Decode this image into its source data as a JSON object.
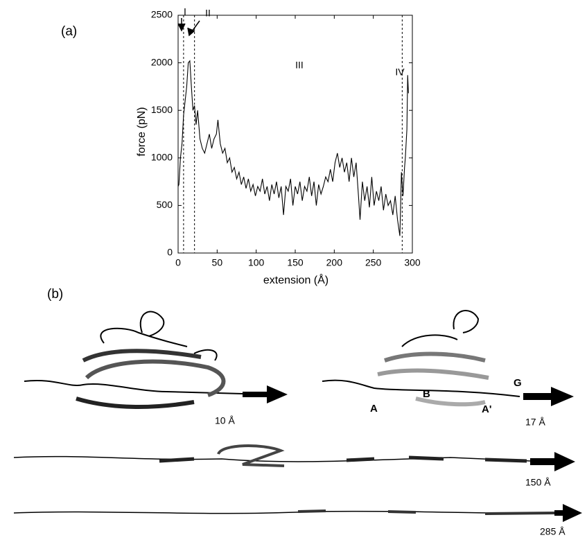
{
  "panel_labels": [
    "(a)",
    "(b)"
  ],
  "chart_data": {
    "type": "line",
    "xlabel": "extension (Å)",
    "ylabel": "force (pN)",
    "xlim": [
      0,
      300
    ],
    "ylim": [
      0,
      2500
    ],
    "xticks": [
      0,
      50,
      100,
      150,
      200,
      250,
      300
    ],
    "yticks": [
      0,
      500,
      1000,
      1500,
      2000,
      2500
    ],
    "region_lines": [
      7,
      21,
      287
    ],
    "annotations": [
      "I",
      "II",
      "III",
      "IV"
    ],
    "color": "#000000",
    "x": [
      0,
      1,
      3,
      5,
      7,
      9,
      11,
      13,
      15,
      17,
      19,
      21,
      23,
      25,
      28,
      31,
      34,
      37,
      40,
      43,
      46,
      49,
      51,
      54,
      57,
      60,
      63,
      66,
      69,
      72,
      75,
      78,
      81,
      84,
      87,
      90,
      93,
      96,
      99,
      102,
      105,
      108,
      111,
      114,
      117,
      120,
      123,
      126,
      129,
      132,
      135,
      138,
      141,
      144,
      147,
      150,
      153,
      156,
      159,
      162,
      165,
      168,
      171,
      174,
      177,
      180,
      183,
      186,
      189,
      192,
      195,
      198,
      201,
      204,
      207,
      210,
      213,
      216,
      219,
      222,
      225,
      228,
      231,
      233,
      236,
      239,
      242,
      245,
      248,
      251,
      254,
      257,
      260,
      263,
      266,
      269,
      272,
      275,
      278,
      281,
      284,
      286,
      288,
      290,
      291,
      292,
      293,
      294,
      295
    ],
    "values": [
      700,
      720,
      1000,
      1150,
      1450,
      1600,
      1750,
      2000,
      2020,
      1750,
      1500,
      1550,
      1350,
      1500,
      1200,
      1100,
      1050,
      1150,
      1250,
      1100,
      1200,
      1250,
      1400,
      1150,
      1050,
      1100,
      950,
      1000,
      850,
      900,
      780,
      850,
      720,
      800,
      680,
      780,
      650,
      720,
      600,
      700,
      650,
      780,
      620,
      700,
      550,
      720,
      620,
      750,
      580,
      700,
      400,
      700,
      650,
      780,
      500,
      700,
      620,
      750,
      550,
      700,
      650,
      800,
      600,
      750,
      500,
      720,
      620,
      700,
      800,
      750,
      880,
      750,
      950,
      1050,
      900,
      1000,
      850,
      950,
      750,
      1000,
      800,
      950,
      600,
      350,
      750,
      550,
      700,
      480,
      800,
      500,
      650,
      550,
      700,
      450,
      620,
      500,
      550,
      400,
      600,
      350,
      180,
      850,
      600,
      900,
      1000,
      1150,
      1300,
      1870,
      1680
    ]
  },
  "structure_labels": [
    "10 Å",
    "A",
    "B",
    "A'",
    "G",
    "17 Å",
    "150 Å",
    "285 Å"
  ]
}
